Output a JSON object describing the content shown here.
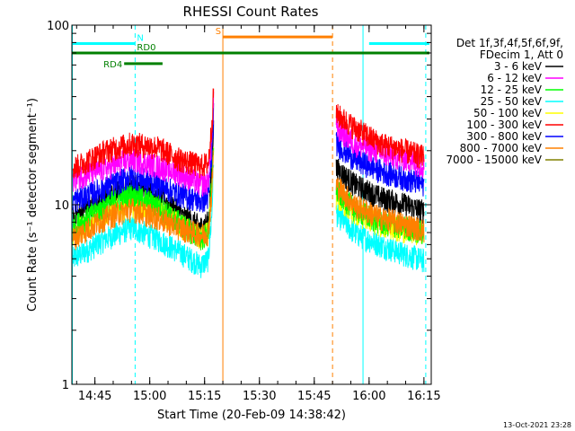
{
  "chart_data": {
    "type": "line",
    "title": "RHESSI Count Rates",
    "xlabel": "Start Time (20-Feb-09 14:38:42)",
    "ylabel": "Count Rate (s⁻¹ detector segment⁻¹)",
    "y_scale": "log",
    "ylim": [
      1,
      100
    ],
    "xlim": [
      "14:38:42",
      "16:17:00"
    ],
    "x_ticks": [
      "14:45",
      "15:00",
      "15:15",
      "15:30",
      "15:45",
      "16:00",
      "16:15"
    ],
    "y_ticks": [
      "1",
      "10",
      "100"
    ],
    "grid": false,
    "legend_position": "right",
    "legend_header": [
      "Det 1f,3f,4f,5f,6f,9f,",
      "FDecim 1, Att 0"
    ],
    "timestamp": "13-Oct-2021 23:28",
    "gaps": [
      [
        "15:17:30",
        "15:51:00"
      ]
    ],
    "series": [
      {
        "name": "3 - 6 keV",
        "color": "#000000",
        "points": [
          [
            "14:39",
            8.5
          ],
          [
            "14:48",
            11
          ],
          [
            "14:55",
            13
          ],
          [
            "15:02",
            11.5
          ],
          [
            "15:08",
            9
          ],
          [
            "15:14",
            7.5
          ],
          [
            "15:16",
            8
          ],
          [
            "15:17",
            16
          ],
          [
            "15:17:30",
            32
          ],
          [
            "15:51",
            16
          ],
          [
            "15:56",
            13
          ],
          [
            "16:03",
            11
          ],
          [
            "16:10",
            10
          ],
          [
            "16:15",
            9.2
          ]
        ]
      },
      {
        "name": "6 - 12 keV",
        "color": "#ff00ff",
        "points": [
          [
            "14:39",
            14
          ],
          [
            "14:48",
            16
          ],
          [
            "14:55",
            18
          ],
          [
            "15:02",
            16.5
          ],
          [
            "15:08",
            15
          ],
          [
            "15:14",
            13
          ],
          [
            "15:16",
            13.5
          ],
          [
            "15:17",
            24
          ],
          [
            "15:17:30",
            40
          ],
          [
            "15:51",
            27
          ],
          [
            "15:56",
            22
          ],
          [
            "16:03",
            19.5
          ],
          [
            "16:10",
            18
          ],
          [
            "16:15",
            16.5
          ]
        ]
      },
      {
        "name": "12 - 25 keV",
        "color": "#00ff00",
        "points": [
          [
            "14:39",
            7.5
          ],
          [
            "14:48",
            10
          ],
          [
            "14:55",
            11.5
          ],
          [
            "15:02",
            10
          ],
          [
            "15:08",
            8
          ],
          [
            "15:14",
            6.5
          ],
          [
            "15:16",
            7
          ],
          [
            "15:17",
            13
          ],
          [
            "15:17:30",
            24
          ],
          [
            "15:51",
            12
          ],
          [
            "15:56",
            9.5
          ],
          [
            "16:03",
            8
          ],
          [
            "16:10",
            7.5
          ],
          [
            "16:15",
            7
          ]
        ]
      },
      {
        "name": "25 - 50 keV",
        "color": "#00ffff",
        "points": [
          [
            "14:39",
            5
          ],
          [
            "14:48",
            6.5
          ],
          [
            "14:55",
            7.5
          ],
          [
            "15:02",
            6.5
          ],
          [
            "15:08",
            5.5
          ],
          [
            "15:14",
            4.6
          ],
          [
            "15:16",
            5
          ],
          [
            "15:17",
            9
          ],
          [
            "15:17:30",
            20
          ],
          [
            "15:51",
            9
          ],
          [
            "15:56",
            7
          ],
          [
            "16:03",
            6
          ],
          [
            "16:10",
            5.3
          ],
          [
            "16:15",
            4.9
          ]
        ]
      },
      {
        "name": "50 - 100 keV",
        "color": "#ffff00",
        "points": [
          [
            "14:39",
            7
          ],
          [
            "14:48",
            9
          ],
          [
            "14:55",
            10
          ],
          [
            "15:02",
            9.5
          ],
          [
            "15:08",
            7.8
          ],
          [
            "15:14",
            6.5
          ],
          [
            "15:16",
            7
          ],
          [
            "15:17",
            12
          ],
          [
            "15:17:30",
            22
          ],
          [
            "15:51",
            11
          ],
          [
            "15:56",
            9
          ],
          [
            "16:03",
            7.8
          ],
          [
            "16:10",
            7.2
          ],
          [
            "16:15",
            6.8
          ]
        ]
      },
      {
        "name": "100 - 300 keV",
        "color": "#ff0000",
        "points": [
          [
            "14:39",
            16
          ],
          [
            "14:48",
            20
          ],
          [
            "14:55",
            22
          ],
          [
            "15:02",
            21
          ],
          [
            "15:08",
            18
          ],
          [
            "15:14",
            16.5
          ],
          [
            "15:16",
            17
          ],
          [
            "15:17",
            28
          ],
          [
            "15:17:30",
            45
          ],
          [
            "15:51",
            32
          ],
          [
            "15:56",
            27
          ],
          [
            "16:03",
            22
          ],
          [
            "16:10",
            20
          ],
          [
            "16:15",
            18.5
          ]
        ]
      },
      {
        "name": "300 - 800 keV",
        "color": "#0000ff",
        "points": [
          [
            "14:39",
            10.5
          ],
          [
            "14:48",
            12.5
          ],
          [
            "14:55",
            14.5
          ],
          [
            "15:02",
            13
          ],
          [
            "15:08",
            11.5
          ],
          [
            "15:14",
            10.5
          ],
          [
            "15:16",
            11
          ],
          [
            "15:17",
            19
          ],
          [
            "15:17:30",
            34
          ],
          [
            "15:51",
            22
          ],
          [
            "15:56",
            18
          ],
          [
            "16:03",
            15.5
          ],
          [
            "16:10",
            14
          ],
          [
            "16:15",
            13
          ]
        ]
      },
      {
        "name": "800 - 7000 keV",
        "color": "#ff8000",
        "points": [
          [
            "14:39",
            6.5
          ],
          [
            "14:48",
            8.5
          ],
          [
            "14:55",
            9.5
          ],
          [
            "15:02",
            8.5
          ],
          [
            "15:08",
            7.5
          ],
          [
            "15:14",
            6.8
          ],
          [
            "15:16",
            7
          ],
          [
            "15:17",
            12
          ],
          [
            "15:17:30",
            22
          ],
          [
            "15:51",
            13
          ],
          [
            "15:56",
            10
          ],
          [
            "16:03",
            8.5
          ],
          [
            "16:10",
            7.8
          ],
          [
            "16:15",
            7.2
          ]
        ]
      },
      {
        "name": "7000 - 15000 keV",
        "color": "#808000",
        "points": []
      }
    ],
    "annotations": {
      "flags": [
        {
          "label": "N",
          "color": "#00ffff",
          "y": 79,
          "segments": [
            [
              "14:38:42",
              "14:56:00"
            ],
            [
              "16:00:00",
              "16:16:30"
            ]
          ]
        },
        {
          "label": "S",
          "color": "#ff8000",
          "y": 86,
          "segments": [
            [
              "15:20:00",
              "15:50:00"
            ]
          ]
        },
        {
          "label": "RD0",
          "color": "#008000",
          "y": 70,
          "segments": [
            [
              "14:38:42",
              "16:16:30"
            ]
          ]
        },
        {
          "label": "RD4",
          "color": "#008000",
          "y": 61,
          "segments": [
            [
              "14:53:00",
              "15:03:30"
            ]
          ]
        }
      ],
      "vlines": [
        {
          "x": "14:38:50",
          "color": "#00ffff",
          "style": "solid"
        },
        {
          "x": "14:56:00",
          "color": "#00ffff",
          "style": "dashed"
        },
        {
          "x": "15:20:00",
          "color": "#ff8000",
          "style": "solid"
        },
        {
          "x": "15:50:00",
          "color": "#ff8000",
          "style": "dashed"
        },
        {
          "x": "15:58:20",
          "color": "#00ffff",
          "style": "solid"
        },
        {
          "x": "16:15:30",
          "color": "#00ffff",
          "style": "dashed"
        }
      ]
    }
  }
}
